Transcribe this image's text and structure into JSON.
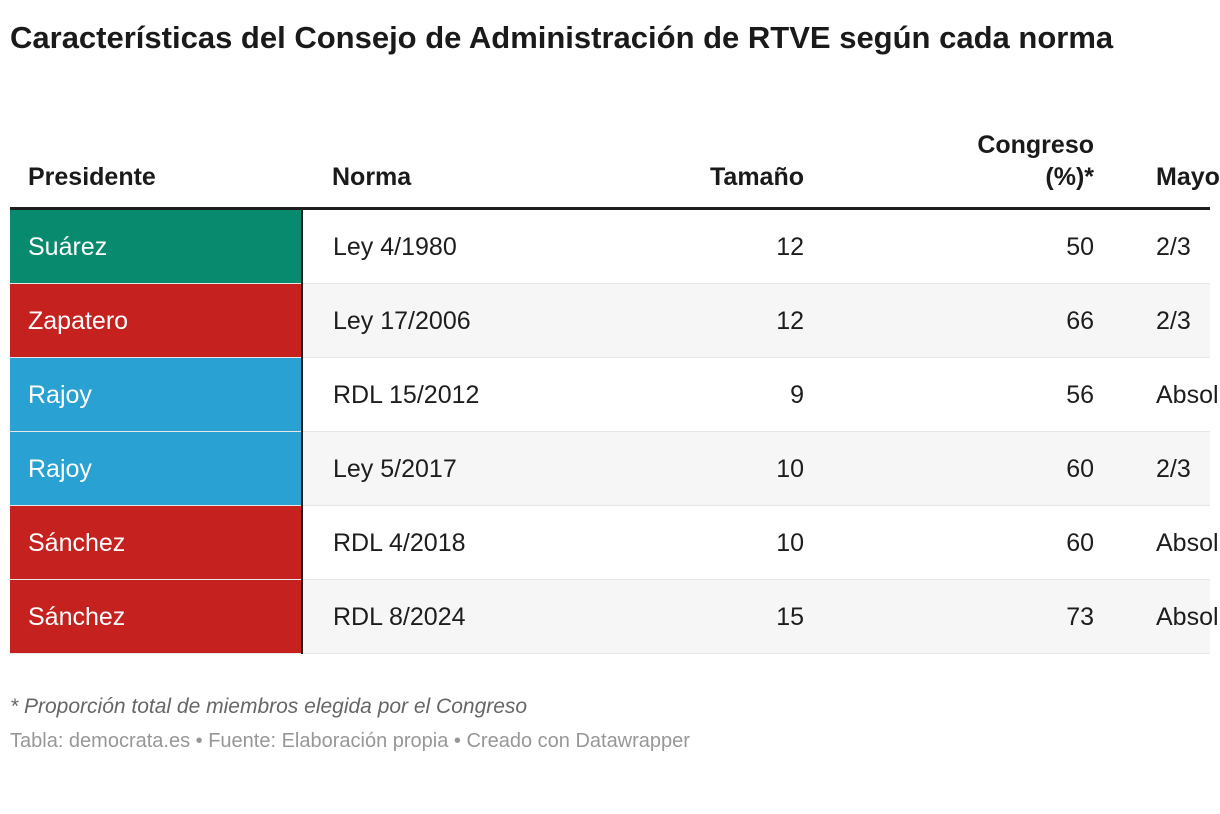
{
  "header": {
    "title": "Características del Consejo de Administración de RTVE según cada norma"
  },
  "chart_data": {
    "type": "table",
    "title": "Características del Consejo de Administración de RTVE según cada norma",
    "columns": [
      {
        "key": "presidente",
        "label": "Presidente",
        "align": "left"
      },
      {
        "key": "norma",
        "label": "Norma",
        "align": "left"
      },
      {
        "key": "tamano",
        "label": "Tamaño",
        "align": "right"
      },
      {
        "key": "congreso_pct",
        "label": "Congreso (%)*",
        "align": "right"
      },
      {
        "key": "mayorias",
        "label": "Mayorías",
        "align": "left"
      }
    ],
    "rows": [
      {
        "presidente": "Suárez",
        "color": "#088a6e",
        "norma": "Ley 4/1980",
        "tamano": "12",
        "congreso_pct": "50",
        "mayorias": "2/3"
      },
      {
        "presidente": "Zapatero",
        "color": "#c5221f",
        "norma": "Ley 17/2006",
        "tamano": "12",
        "congreso_pct": "66",
        "mayorias": "2/3"
      },
      {
        "presidente": "Rajoy",
        "color": "#2aa1d3",
        "norma": "RDL 15/2012",
        "tamano": "9",
        "congreso_pct": "56",
        "mayorias": "Absoluta"
      },
      {
        "presidente": "Rajoy",
        "color": "#2aa1d3",
        "norma": "Ley 5/2017",
        "tamano": "10",
        "congreso_pct": "60",
        "mayorias": "2/3"
      },
      {
        "presidente": "Sánchez",
        "color": "#c5221f",
        "norma": "RDL 4/2018",
        "tamano": "10",
        "congreso_pct": "60",
        "mayorias": "Absoluta"
      },
      {
        "presidente": "Sánchez",
        "color": "#c5221f",
        "norma": "RDL 8/2024",
        "tamano": "15",
        "congreso_pct": "73",
        "mayorias": "Absoluta"
      }
    ],
    "colors": {
      "ucd_teal": "#088a6e",
      "psoe_red": "#c5221f",
      "pp_blue": "#2aa1d3",
      "header_border": "#1d1d1d",
      "alt_row_bg": "#f6f6f6"
    }
  },
  "footer": {
    "footnote": "* Proporción total de miembros elegida por el Congreso",
    "source": "Tabla: democrata.es • Fuente: Elaboración propia • Creado con Datawrapper"
  }
}
